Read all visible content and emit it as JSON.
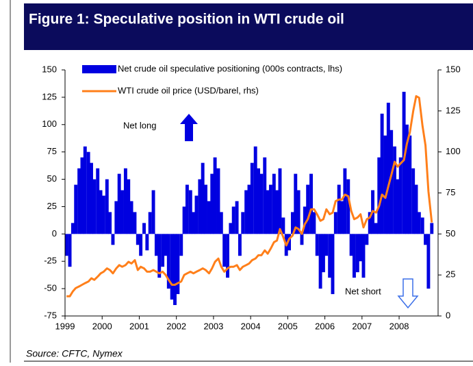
{
  "chart_data": {
    "type": "bar",
    "title": "Figure 1: Speculative position in WTI crude oil",
    "source": "Source: CFTC, Nymex",
    "annotations": [
      "Net long",
      "Net short"
    ],
    "xlim": [
      1999,
      2009.05
    ],
    "xticks": [
      1999,
      2000,
      2001,
      2002,
      2003,
      2004,
      2005,
      2006,
      2007,
      2008
    ],
    "ylim": [
      -75,
      150
    ],
    "yticks": [
      -75,
      -50,
      -25,
      0,
      25,
      50,
      75,
      100,
      125,
      150
    ],
    "y2lim": [
      0,
      150
    ],
    "y2ticks": [
      0,
      25,
      50,
      75,
      100,
      125,
      150
    ],
    "x": [
      1999.04,
      1999.13,
      1999.21,
      1999.29,
      1999.38,
      1999.46,
      1999.54,
      1999.63,
      1999.71,
      1999.79,
      1999.88,
      1999.96,
      2000.04,
      2000.13,
      2000.21,
      2000.29,
      2000.38,
      2000.46,
      2000.54,
      2000.63,
      2000.71,
      2000.79,
      2000.88,
      2000.96,
      2001.04,
      2001.13,
      2001.21,
      2001.29,
      2001.38,
      2001.46,
      2001.54,
      2001.63,
      2001.71,
      2001.79,
      2001.88,
      2001.96,
      2002.04,
      2002.13,
      2002.21,
      2002.29,
      2002.38,
      2002.46,
      2002.54,
      2002.63,
      2002.71,
      2002.79,
      2002.88,
      2002.96,
      2003.04,
      2003.13,
      2003.21,
      2003.29,
      2003.38,
      2003.46,
      2003.54,
      2003.63,
      2003.71,
      2003.79,
      2003.88,
      2003.96,
      2004.04,
      2004.13,
      2004.21,
      2004.29,
      2004.38,
      2004.46,
      2004.54,
      2004.63,
      2004.71,
      2004.79,
      2004.88,
      2004.96,
      2005.04,
      2005.13,
      2005.21,
      2005.29,
      2005.38,
      2005.46,
      2005.54,
      2005.63,
      2005.71,
      2005.79,
      2005.88,
      2005.96,
      2006.04,
      2006.13,
      2006.21,
      2006.29,
      2006.38,
      2006.46,
      2006.54,
      2006.63,
      2006.71,
      2006.79,
      2006.88,
      2006.96,
      2007.04,
      2007.13,
      2007.21,
      2007.29,
      2007.38,
      2007.46,
      2007.54,
      2007.63,
      2007.71,
      2007.79,
      2007.88,
      2007.96,
      2008.04,
      2008.13,
      2008.21,
      2008.29,
      2008.38,
      2008.46,
      2008.54,
      2008.63,
      2008.71,
      2008.79,
      2008.88
    ],
    "series": [
      {
        "name": "Net crude oil speculative positioning (000s contracts, lhs)",
        "color": "#0000e0",
        "type": "bar",
        "values": [
          -20,
          -30,
          10,
          45,
          60,
          70,
          80,
          75,
          65,
          50,
          60,
          40,
          35,
          50,
          20,
          -10,
          30,
          55,
          40,
          60,
          50,
          30,
          20,
          -10,
          -20,
          10,
          -15,
          20,
          40,
          -20,
          -40,
          -30,
          -20,
          -50,
          -60,
          -65,
          -55,
          -20,
          25,
          45,
          40,
          20,
          35,
          50,
          65,
          45,
          30,
          55,
          70,
          60,
          20,
          -30,
          -40,
          10,
          25,
          30,
          -20,
          20,
          40,
          45,
          65,
          80,
          60,
          55,
          70,
          40,
          45,
          55,
          40,
          60,
          15,
          -20,
          -15,
          20,
          55,
          40,
          -10,
          25,
          45,
          55,
          20,
          -20,
          -50,
          -35,
          -20,
          -40,
          -55,
          20,
          45,
          30,
          60,
          50,
          -20,
          -40,
          -35,
          -25,
          -40,
          -10,
          20,
          40,
          10,
          70,
          110,
          90,
          120,
          95,
          80,
          50,
          70,
          130,
          100,
          90,
          60,
          45,
          20,
          15,
          -10,
          -50,
          10
        ]
      },
      {
        "name": "WTI crude oil price (USD/barel, rhs)",
        "color": "#ff7f1a",
        "type": "line",
        "axis": "y2",
        "values": [
          12,
          12,
          15,
          17,
          18,
          19,
          20,
          21,
          23,
          22,
          24,
          26,
          27,
          29,
          28,
          26,
          29,
          31,
          30,
          31,
          33,
          32,
          34,
          28,
          30,
          29,
          27,
          27,
          28,
          27,
          26,
          27,
          25,
          22,
          19,
          19,
          20,
          21,
          25,
          26,
          27,
          26,
          27,
          28,
          29,
          28,
          26,
          29,
          33,
          35,
          30,
          27,
          29,
          30,
          30,
          31,
          28,
          30,
          31,
          32,
          34,
          35,
          37,
          37,
          40,
          38,
          41,
          45,
          46,
          53,
          48,
          43,
          47,
          49,
          54,
          53,
          50,
          56,
          59,
          65,
          65,
          62,
          58,
          59,
          65,
          62,
          63,
          70,
          71,
          71,
          74,
          73,
          64,
          59,
          60,
          62,
          54,
          59,
          60,
          64,
          63,
          67,
          74,
          72,
          79,
          86,
          94,
          91,
          93,
          95,
          105,
          112,
          125,
          134,
          133,
          116,
          104,
          76,
          57
        ]
      }
    ]
  }
}
